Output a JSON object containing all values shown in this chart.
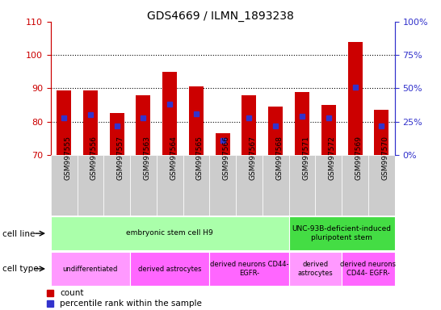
{
  "title": "GDS4669 / ILMN_1893238",
  "samples": [
    "GSM997555",
    "GSM997556",
    "GSM997557",
    "GSM997563",
    "GSM997564",
    "GSM997565",
    "GSM997566",
    "GSM997567",
    "GSM997568",
    "GSM997571",
    "GSM997572",
    "GSM997569",
    "GSM997570"
  ],
  "counts": [
    89.5,
    89.5,
    82.5,
    88.0,
    95.0,
    90.5,
    76.5,
    88.0,
    84.5,
    89.0,
    85.0,
    104.0,
    83.5
  ],
  "percentile_ranks": [
    28.0,
    30.0,
    22.0,
    28.0,
    38.0,
    31.0,
    11.0,
    28.0,
    22.0,
    29.0,
    28.0,
    51.0,
    22.0
  ],
  "ylim_left": [
    70,
    110
  ],
  "ylim_right": [
    0,
    100
  ],
  "yticks_left": [
    70,
    80,
    90,
    100,
    110
  ],
  "yticks_right": [
    0,
    25,
    50,
    75,
    100
  ],
  "ytick_labels_right": [
    "0%",
    "25%",
    "50%",
    "75%",
    "100%"
  ],
  "bar_color": "#CC0000",
  "dot_color": "#3333CC",
  "bar_width": 0.55,
  "cell_line_groups": [
    {
      "label": "embryonic stem cell H9",
      "start": 0,
      "end": 9,
      "color": "#AAFFAA"
    },
    {
      "label": "UNC-93B-deficient-induced\npluripotent stem",
      "start": 9,
      "end": 13,
      "color": "#44DD44"
    }
  ],
  "cell_type_groups": [
    {
      "label": "undifferentiated",
      "start": 0,
      "end": 3,
      "color": "#FF99FF"
    },
    {
      "label": "derived astrocytes",
      "start": 3,
      "end": 6,
      "color": "#FF66FF"
    },
    {
      "label": "derived neurons CD44-\nEGFR-",
      "start": 6,
      "end": 9,
      "color": "#FF66FF"
    },
    {
      "label": "derived\nastrocytes",
      "start": 9,
      "end": 11,
      "color": "#FF99FF"
    },
    {
      "label": "derived neurons\nCD44- EGFR-",
      "start": 11,
      "end": 13,
      "color": "#FF66FF"
    }
  ],
  "legend_count_color": "#CC0000",
  "legend_pct_color": "#3333CC",
  "tick_color_left": "#CC0000",
  "tick_color_right": "#3333CC",
  "bg_color": "#FFFFFF"
}
